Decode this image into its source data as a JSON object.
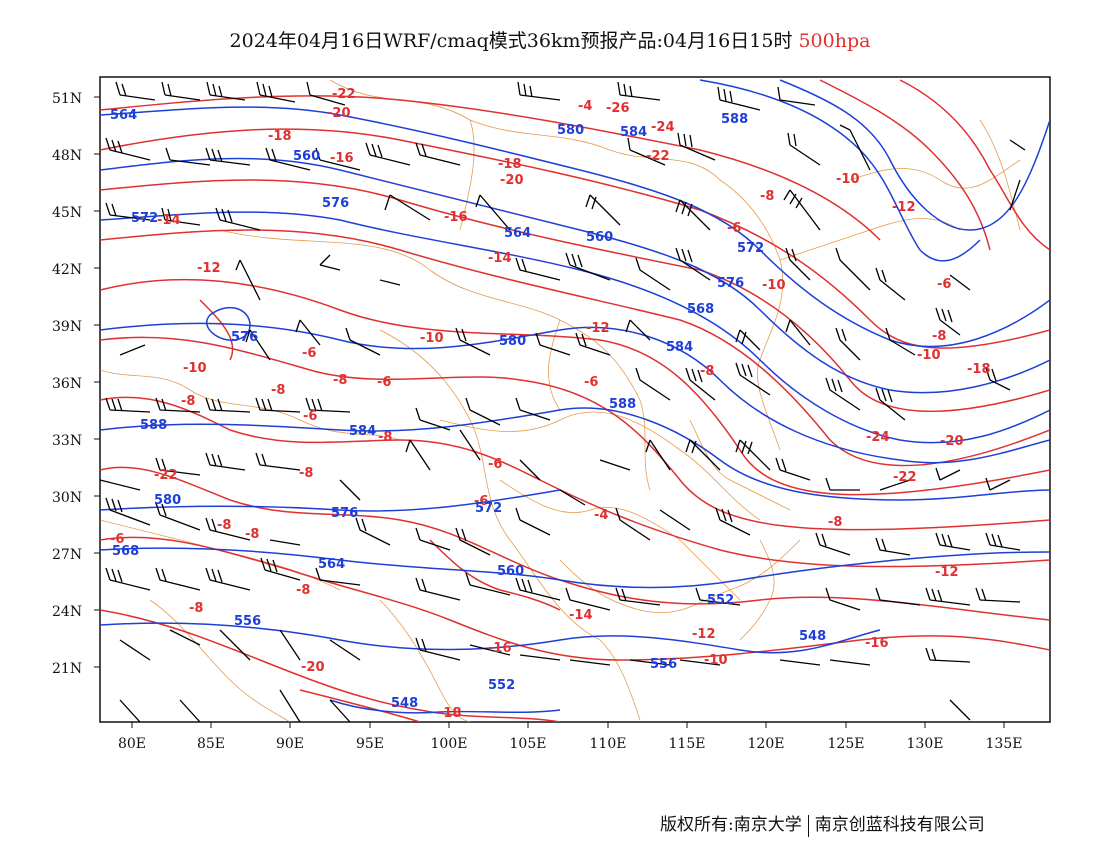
{
  "title": {
    "main": "2024年04月16日WRF/cmaq模式36km预报产品:04月16日15时",
    "level": "500hpa"
  },
  "axes": {
    "lat_labels": [
      "51N",
      "48N",
      "45N",
      "42N",
      "39N",
      "36N",
      "33N",
      "30N",
      "27N",
      "24N",
      "21N"
    ],
    "lon_labels": [
      "80E",
      "85E",
      "90E",
      "95E",
      "100E",
      "105E",
      "110E",
      "115E",
      "120E",
      "125E",
      "130E",
      "135E"
    ]
  },
  "colors": {
    "temperature": "#e03030",
    "height": "#1d3fd8",
    "borders": "#e08a30",
    "wind": "#000000"
  },
  "contours": {
    "temperature_labels": [
      "-22",
      "-20",
      "-18",
      "-16",
      "-14",
      "-12",
      "-10",
      "-8",
      "-6",
      "-4",
      "-26",
      "-24",
      "-22",
      "-20",
      "-18",
      "-16",
      "-14",
      "-12",
      "-10",
      "-8",
      "-6",
      "-8",
      "-6",
      "-8",
      "-10",
      "-12",
      "-8",
      "-6",
      "-10",
      "-8",
      "-6",
      "-4",
      "-6",
      "-8",
      "-8",
      "-8",
      "-6",
      "-8",
      "-8",
      "-6",
      "-14",
      "-16",
      "-12",
      "-10",
      "-8",
      "-12",
      "-16",
      "-18",
      "-20",
      "-22",
      "-24",
      "-22",
      "-20",
      "-18",
      "-10",
      "-8",
      "-6"
    ],
    "height_labels": [
      "564",
      "560",
      "572",
      "576",
      "576",
      "580",
      "584",
      "588",
      "588",
      "584",
      "580",
      "576",
      "572",
      "568",
      "564",
      "560",
      "556",
      "552",
      "548",
      "552",
      "548",
      "556",
      "560",
      "564",
      "568",
      "572",
      "576",
      "580",
      "584",
      "588"
    ]
  },
  "copyright": {
    "owner1": "版权所有:南京大学",
    "owner2": "南京创蓝科技有限公司"
  }
}
